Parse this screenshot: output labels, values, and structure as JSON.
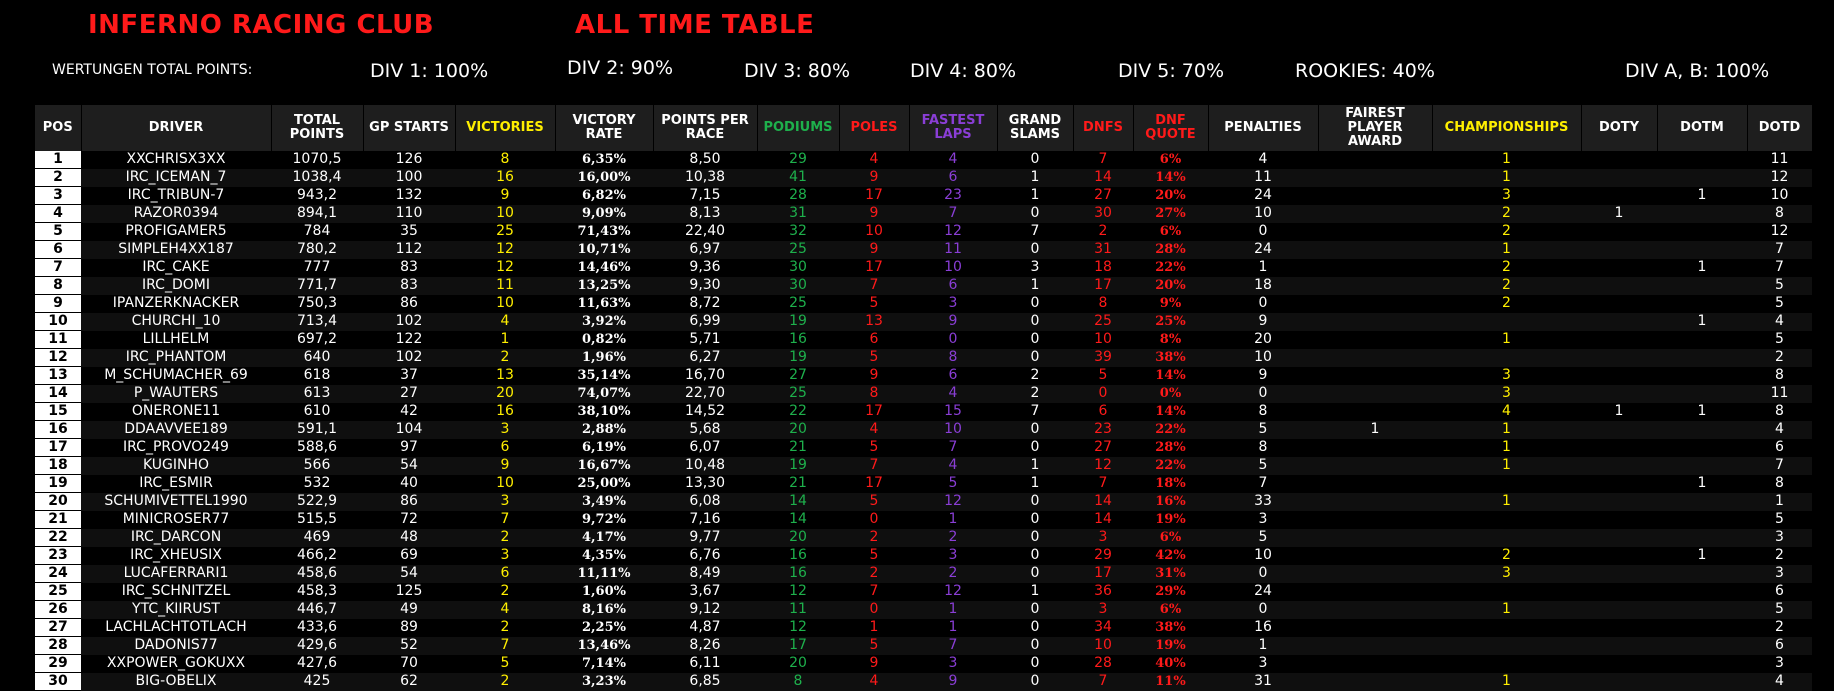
{
  "header": {
    "club_title": "INFERNO RACING CLUB",
    "table_title": "ALL TIME TABLE",
    "wertungen_label": "WERTUNGEN TOTAL POINTS:",
    "divisions": [
      "DIV 1: 100%",
      "DIV 2: 90%",
      "DIV 3: 80%",
      "DIV 4: 80%",
      "DIV 5: 70%",
      "ROOKIES: 40%",
      "DIV A, B: 100%"
    ]
  },
  "colors": {
    "title_red": "#ff1a1a",
    "yellow": "#ffef00",
    "green": "#1eb04c",
    "red": "#ff1a1a",
    "purple": "#8a3ed6",
    "header_bg": "#1e1e1e"
  },
  "columns": [
    {
      "key": "pos",
      "label": "POS",
      "color": "white"
    },
    {
      "key": "driver",
      "label": "DRIVER",
      "color": "white"
    },
    {
      "key": "points",
      "label": "TOTAL POINTS",
      "color": "white"
    },
    {
      "key": "starts",
      "label": "GP STARTS",
      "color": "white"
    },
    {
      "key": "victories",
      "label": "VICTORIES",
      "color": "yellow"
    },
    {
      "key": "vrate",
      "label": "VICTORY RATE",
      "color": "white"
    },
    {
      "key": "ppr",
      "label": "POINTS PER RACE",
      "color": "white"
    },
    {
      "key": "podiums",
      "label": "PODIUMS",
      "color": "green"
    },
    {
      "key": "poles",
      "label": "POLES",
      "color": "red"
    },
    {
      "key": "fastest",
      "label": "FASTEST LAPS",
      "color": "purple"
    },
    {
      "key": "slams",
      "label": "GRAND SLAMS",
      "color": "white"
    },
    {
      "key": "dnfs",
      "label": "DNFS",
      "color": "red"
    },
    {
      "key": "dnfq",
      "label": "DNF QUOTE",
      "color": "red"
    },
    {
      "key": "pen",
      "label": "PENALTIES",
      "color": "white"
    },
    {
      "key": "fair",
      "label": "FAIREST PLAYER AWARD",
      "color": "white"
    },
    {
      "key": "champ",
      "label": "CHAMPIONSHIPS",
      "color": "yellow"
    },
    {
      "key": "doty",
      "label": "DOTY",
      "color": "white"
    },
    {
      "key": "dotm",
      "label": "DOTM",
      "color": "white"
    },
    {
      "key": "dotd",
      "label": "DOTD",
      "color": "white"
    }
  ],
  "rows": [
    [
      "1",
      "XXCHRISX3XX",
      "1070,5",
      "126",
      "8",
      "6,35%",
      "8,50",
      "29",
      "4",
      "4",
      "0",
      "7",
      "6%",
      "4",
      "",
      "1",
      "",
      "",
      "11"
    ],
    [
      "2",
      "IRC_ICEMAN_7",
      "1038,4",
      "100",
      "16",
      "16,00%",
      "10,38",
      "41",
      "9",
      "6",
      "1",
      "14",
      "14%",
      "11",
      "",
      "1",
      "",
      "",
      "12"
    ],
    [
      "3",
      "IRC_TRIBUN-7",
      "943,2",
      "132",
      "9",
      "6,82%",
      "7,15",
      "28",
      "17",
      "23",
      "1",
      "27",
      "20%",
      "24",
      "",
      "3",
      "",
      "1",
      "10"
    ],
    [
      "4",
      "RAZOR0394",
      "894,1",
      "110",
      "10",
      "9,09%",
      "8,13",
      "31",
      "9",
      "7",
      "0",
      "30",
      "27%",
      "10",
      "",
      "2",
      "1",
      "",
      "8"
    ],
    [
      "5",
      "PROFIGAMER5",
      "784",
      "35",
      "25",
      "71,43%",
      "22,40",
      "32",
      "10",
      "12",
      "7",
      "2",
      "6%",
      "0",
      "",
      "2",
      "",
      "",
      "12"
    ],
    [
      "6",
      "SIMPLEH4XX187",
      "780,2",
      "112",
      "12",
      "10,71%",
      "6,97",
      "25",
      "9",
      "11",
      "0",
      "31",
      "28%",
      "24",
      "",
      "1",
      "",
      "",
      "7"
    ],
    [
      "7",
      "IRC_CAKE",
      "777",
      "83",
      "12",
      "14,46%",
      "9,36",
      "30",
      "17",
      "10",
      "3",
      "18",
      "22%",
      "1",
      "",
      "2",
      "",
      "1",
      "7"
    ],
    [
      "8",
      "IRC_DOMI",
      "771,7",
      "83",
      "11",
      "13,25%",
      "9,30",
      "30",
      "7",
      "6",
      "1",
      "17",
      "20%",
      "18",
      "",
      "2",
      "",
      "",
      "5"
    ],
    [
      "9",
      "IPANZERKNACKER",
      "750,3",
      "86",
      "10",
      "11,63%",
      "8,72",
      "25",
      "5",
      "3",
      "0",
      "8",
      "9%",
      "0",
      "",
      "2",
      "",
      "",
      "5"
    ],
    [
      "10",
      "CHURCHI_10",
      "713,4",
      "102",
      "4",
      "3,92%",
      "6,99",
      "19",
      "13",
      "9",
      "0",
      "25",
      "25%",
      "9",
      "",
      "",
      "",
      "1",
      "4"
    ],
    [
      "11",
      "LILLHELM",
      "697,2",
      "122",
      "1",
      "0,82%",
      "5,71",
      "16",
      "6",
      "0",
      "0",
      "10",
      "8%",
      "20",
      "",
      "1",
      "",
      "",
      "5"
    ],
    [
      "12",
      "IRC_PHANTOM",
      "640",
      "102",
      "2",
      "1,96%",
      "6,27",
      "19",
      "5",
      "8",
      "0",
      "39",
      "38%",
      "10",
      "",
      "",
      "",
      "",
      "2"
    ],
    [
      "13",
      "M_SCHUMACHER_69",
      "618",
      "37",
      "13",
      "35,14%",
      "16,70",
      "27",
      "9",
      "6",
      "2",
      "5",
      "14%",
      "9",
      "",
      "3",
      "",
      "",
      "8"
    ],
    [
      "14",
      "P_WAUTERS",
      "613",
      "27",
      "20",
      "74,07%",
      "22,70",
      "25",
      "8",
      "4",
      "2",
      "0",
      "0%",
      "0",
      "",
      "3",
      "",
      "",
      "11"
    ],
    [
      "15",
      "ONERONE11",
      "610",
      "42",
      "16",
      "38,10%",
      "14,52",
      "22",
      "17",
      "15",
      "7",
      "6",
      "14%",
      "8",
      "",
      "4",
      "1",
      "1",
      "8"
    ],
    [
      "16",
      "DDAAVVEE189",
      "591,1",
      "104",
      "3",
      "2,88%",
      "5,68",
      "20",
      "4",
      "10",
      "0",
      "23",
      "22%",
      "5",
      "1",
      "1",
      "",
      "",
      "4"
    ],
    [
      "17",
      "IRC_PROVO249",
      "588,6",
      "97",
      "6",
      "6,19%",
      "6,07",
      "21",
      "5",
      "7",
      "0",
      "27",
      "28%",
      "8",
      "",
      "1",
      "",
      "",
      "6"
    ],
    [
      "18",
      "KUGINHO",
      "566",
      "54",
      "9",
      "16,67%",
      "10,48",
      "19",
      "7",
      "4",
      "1",
      "12",
      "22%",
      "5",
      "",
      "1",
      "",
      "",
      "7"
    ],
    [
      "19",
      "IRC_ESMIR",
      "532",
      "40",
      "10",
      "25,00%",
      "13,30",
      "21",
      "17",
      "5",
      "1",
      "7",
      "18%",
      "7",
      "",
      "",
      "",
      "1",
      "8"
    ],
    [
      "20",
      "SCHUMIVETTEL1990",
      "522,9",
      "86",
      "3",
      "3,49%",
      "6,08",
      "14",
      "5",
      "12",
      "0",
      "14",
      "16%",
      "33",
      "",
      "1",
      "",
      "",
      "1"
    ],
    [
      "21",
      "MINICROSER77",
      "515,5",
      "72",
      "7",
      "9,72%",
      "7,16",
      "14",
      "0",
      "1",
      "0",
      "14",
      "19%",
      "3",
      "",
      "",
      "",
      "",
      "5"
    ],
    [
      "22",
      "IRC_DARCON",
      "469",
      "48",
      "2",
      "4,17%",
      "9,77",
      "20",
      "2",
      "2",
      "0",
      "3",
      "6%",
      "5",
      "",
      "",
      "",
      "",
      "3"
    ],
    [
      "23",
      "IRC_XHEUSIX",
      "466,2",
      "69",
      "3",
      "4,35%",
      "6,76",
      "16",
      "5",
      "3",
      "0",
      "29",
      "42%",
      "10",
      "",
      "2",
      "",
      "1",
      "2"
    ],
    [
      "24",
      "LUCAFERRARI1",
      "458,6",
      "54",
      "6",
      "11,11%",
      "8,49",
      "16",
      "2",
      "2",
      "0",
      "17",
      "31%",
      "0",
      "",
      "3",
      "",
      "",
      "3"
    ],
    [
      "25",
      "IRC_SCHNITZEL",
      "458,3",
      "125",
      "2",
      "1,60%",
      "3,67",
      "12",
      "7",
      "12",
      "1",
      "36",
      "29%",
      "24",
      "",
      "",
      "",
      "",
      "6"
    ],
    [
      "26",
      "YTC_KIIRUST",
      "446,7",
      "49",
      "4",
      "8,16%",
      "9,12",
      "11",
      "0",
      "1",
      "0",
      "3",
      "6%",
      "0",
      "",
      "1",
      "",
      "",
      "5"
    ],
    [
      "27",
      "LACHLACHTOTLACH",
      "433,6",
      "89",
      "2",
      "2,25%",
      "4,87",
      "12",
      "1",
      "1",
      "0",
      "34",
      "38%",
      "16",
      "",
      "",
      "",
      "",
      "2"
    ],
    [
      "28",
      "DADONIS77",
      "429,6",
      "52",
      "7",
      "13,46%",
      "8,26",
      "17",
      "5",
      "7",
      "0",
      "10",
      "19%",
      "1",
      "",
      "",
      "",
      "",
      "6"
    ],
    [
      "29",
      "XXPOWER_GOKUXX",
      "427,6",
      "70",
      "5",
      "7,14%",
      "6,11",
      "20",
      "9",
      "3",
      "0",
      "28",
      "40%",
      "3",
      "",
      "",
      "",
      "",
      "3"
    ],
    [
      "30",
      "BIG-OBELIX",
      "425",
      "62",
      "2",
      "3,23%",
      "6,85",
      "8",
      "4",
      "9",
      "0",
      "7",
      "11%",
      "31",
      "",
      "1",
      "",
      "",
      "4"
    ]
  ]
}
